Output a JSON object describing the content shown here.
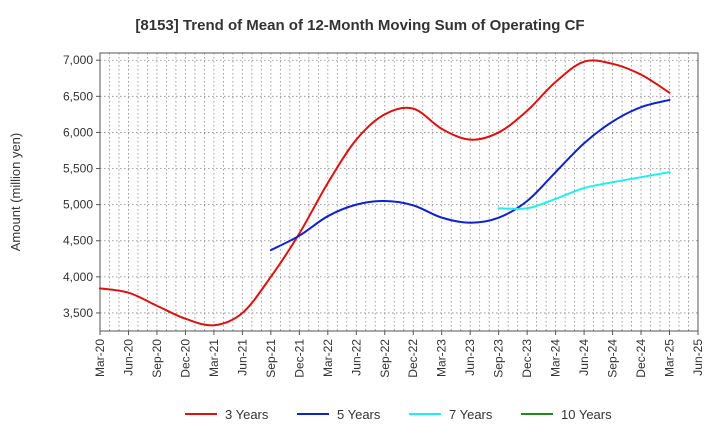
{
  "chart_data": {
    "type": "line",
    "title": "[8153]  Trend of Mean of 12-Month Moving Sum of Operating CF",
    "xlabel": "",
    "ylabel": "Amount (million yen)",
    "ylim": [
      3250,
      7100
    ],
    "yticks": [
      3500,
      4000,
      4500,
      5000,
      5500,
      6000,
      6500,
      7000
    ],
    "ytick_labels": [
      "3,500",
      "4,000",
      "4,500",
      "5,000",
      "5,500",
      "6,000",
      "6,500",
      "7,000"
    ],
    "x_labels": [
      "Mar-20",
      "Jun-20",
      "Sep-20",
      "Dec-20",
      "Mar-21",
      "Jun-21",
      "Sep-21",
      "Dec-21",
      "Mar-22",
      "Jun-22",
      "Sep-22",
      "Dec-22",
      "Mar-23",
      "Jun-23",
      "Sep-23",
      "Dec-23",
      "Mar-24",
      "Jun-24",
      "Sep-24",
      "Dec-24",
      "Mar-25",
      "Jun-25"
    ],
    "grid": true,
    "legend_position": "bottom",
    "series": [
      {
        "name": "3 Years",
        "color": "#dd1111",
        "points": [
          [
            0,
            3840
          ],
          [
            1,
            3780
          ],
          [
            2,
            3600
          ],
          [
            3,
            3420
          ],
          [
            4,
            3330
          ],
          [
            5,
            3500
          ],
          [
            6,
            4000
          ],
          [
            7,
            4600
          ],
          [
            8,
            5300
          ],
          [
            9,
            5900
          ],
          [
            10,
            6250
          ],
          [
            11,
            6330
          ],
          [
            12,
            6050
          ],
          [
            13,
            5900
          ],
          [
            14,
            6000
          ],
          [
            15,
            6300
          ],
          [
            16,
            6700
          ],
          [
            17,
            6980
          ],
          [
            18,
            6950
          ],
          [
            19,
            6800
          ],
          [
            20,
            6550
          ]
        ]
      },
      {
        "name": "5 Years",
        "color": "#1122cc",
        "points": [
          [
            6,
            4370
          ],
          [
            7,
            4570
          ],
          [
            8,
            4840
          ],
          [
            9,
            5000
          ],
          [
            10,
            5050
          ],
          [
            11,
            4990
          ],
          [
            12,
            4820
          ],
          [
            13,
            4750
          ],
          [
            14,
            4820
          ],
          [
            15,
            5050
          ],
          [
            16,
            5450
          ],
          [
            17,
            5850
          ],
          [
            18,
            6150
          ],
          [
            19,
            6350
          ],
          [
            20,
            6450
          ]
        ]
      },
      {
        "name": "7 Years",
        "color": "#22eeee",
        "points": [
          [
            14,
            4950
          ],
          [
            15,
            4950
          ],
          [
            16,
            5080
          ],
          [
            17,
            5230
          ],
          [
            18,
            5310
          ],
          [
            19,
            5380
          ],
          [
            20,
            5450
          ]
        ]
      },
      {
        "name": "10 Years",
        "color": "#228822",
        "points": []
      }
    ]
  }
}
